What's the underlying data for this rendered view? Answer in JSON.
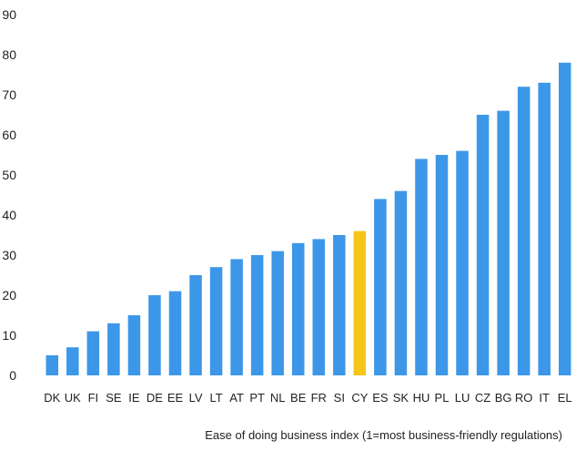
{
  "chart_data": {
    "type": "bar",
    "title": "",
    "xlabel": "Ease of doing business index (1=most business-friendly regulations)",
    "ylabel": "",
    "ylim": [
      0,
      90
    ],
    "yticks": [
      0,
      10,
      20,
      30,
      40,
      50,
      60,
      70,
      80,
      90
    ],
    "grid": false,
    "categories": [
      "DK",
      "UK",
      "FI",
      "SE",
      "IE",
      "DE",
      "EE",
      "LV",
      "LT",
      "AT",
      "PT",
      "NL",
      "BE",
      "FR",
      "SI",
      "CY",
      "ES",
      "SK",
      "HU",
      "PL",
      "LU",
      "CZ",
      "BG",
      "RO",
      "IT",
      "EL"
    ],
    "values": [
      5,
      7,
      11,
      13,
      15,
      20,
      21,
      25,
      27,
      29,
      30,
      31,
      33,
      34,
      35,
      36,
      44,
      46,
      54,
      55,
      56,
      65,
      66,
      72,
      73,
      78
    ],
    "highlight_category": "CY",
    "colors": {
      "bar": "#3d97e8",
      "highlight": "#f5c518"
    }
  }
}
